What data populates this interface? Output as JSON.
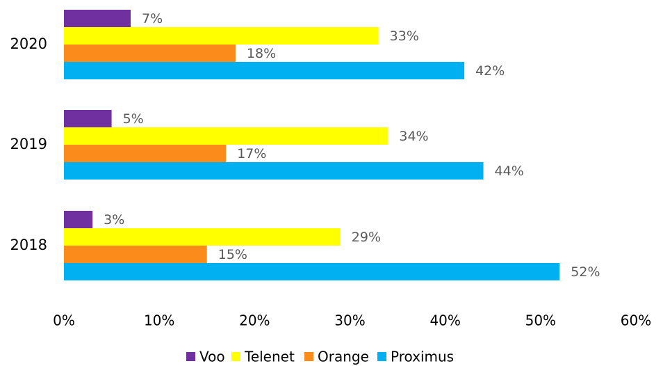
{
  "chart_data": {
    "type": "hbar",
    "categories": [
      "2020",
      "2019",
      "2018"
    ],
    "series": [
      {
        "name": "Voo",
        "color": "#7030a0",
        "values": [
          7,
          5,
          3
        ],
        "value_labels": [
          "7%",
          "5%",
          "3%"
        ]
      },
      {
        "name": "Telenet",
        "color": "#ffff00",
        "values": [
          33,
          34,
          29
        ],
        "value_labels": [
          "33%",
          "34%",
          "29%"
        ]
      },
      {
        "name": "Orange",
        "color": "#fb8c1c",
        "values": [
          18,
          17,
          15
        ],
        "value_labels": [
          "18%",
          "17%",
          "15%"
        ]
      },
      {
        "name": "Proximus",
        "color": "#00b0f0",
        "values": [
          42,
          44,
          52
        ],
        "value_labels": [
          "42%",
          "44%",
          "52%"
        ]
      }
    ],
    "xlim": [
      0,
      60
    ],
    "xticks": [
      {
        "value": 0,
        "label": "0%"
      },
      {
        "value": 10,
        "label": "10%"
      },
      {
        "value": 20,
        "label": "20%"
      },
      {
        "value": 30,
        "label": "30%"
      },
      {
        "value": 40,
        "label": "40%"
      },
      {
        "value": 50,
        "label": "50%"
      },
      {
        "value": 60,
        "label": "60%"
      }
    ],
    "grid": false,
    "legend": "bottom"
  }
}
